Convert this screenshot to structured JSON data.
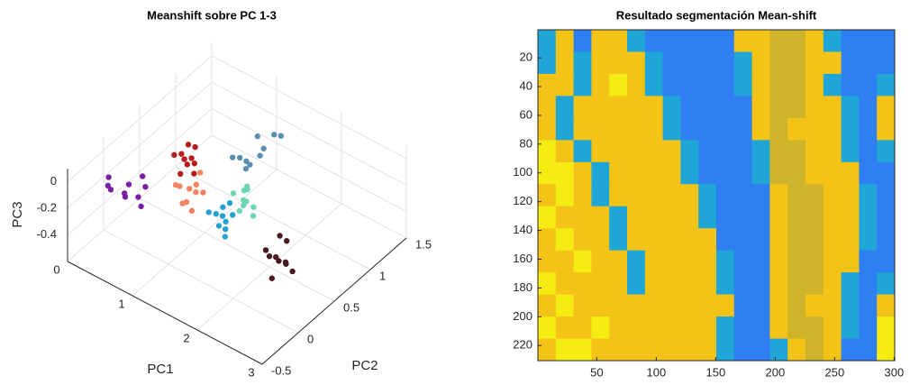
{
  "chart_data": [
    {
      "type": "scatter3d",
      "title": "Meanshift sobre PC 1-3",
      "xlabel": "PC1",
      "ylabel": "PC2",
      "zlabel": "PC3",
      "xlim": [
        0,
        3
      ],
      "ylim": [
        -0.5,
        1.5
      ],
      "zlim": [
        -0.6,
        0.1
      ],
      "xticks": [
        0,
        1,
        2,
        3
      ],
      "yticks": [
        -0.5,
        0,
        0.5,
        1,
        1.5
      ],
      "zticks": [
        -0.4,
        -0.2,
        0
      ],
      "grid": true,
      "series": [
        {
          "color": "#7b1fa2",
          "x": [
            0.4,
            0.5,
            0.6,
            0.7,
            0.5,
            0.6,
            0.8,
            0.3,
            0.7,
            0.5
          ],
          "y": [
            -0.3,
            -0.1,
            -0.25,
            -0.15,
            -0.35,
            0.0,
            -0.2,
            -0.2,
            -0.05,
            -0.15
          ],
          "z": [
            -0.02,
            -0.08,
            -0.05,
            -0.1,
            0.0,
            -0.04,
            -0.12,
            -0.03,
            -0.07,
            -0.15
          ]
        },
        {
          "color": "#b71c1c",
          "x": [
            0.7,
            0.8,
            0.9,
            0.75,
            0.85,
            0.8,
            0.95,
            0.7,
            0.9,
            0.8
          ],
          "y": [
            0.35,
            0.4,
            0.45,
            0.5,
            0.3,
            0.55,
            0.4,
            0.45,
            0.35,
            0.5
          ],
          "z": [
            -0.02,
            -0.05,
            -0.08,
            0.0,
            -0.1,
            -0.03,
            -0.12,
            -0.06,
            -0.04,
            -0.09
          ]
        },
        {
          "color": "#f4845f",
          "x": [
            1.0,
            1.1,
            1.2,
            1.05,
            1.15,
            0.95,
            1.25,
            1.1,
            1.0,
            1.2
          ],
          "y": [
            0.1,
            0.2,
            0.3,
            0.15,
            0.25,
            0.2,
            0.1,
            0.35,
            0.25,
            0.2
          ],
          "z": [
            -0.05,
            -0.1,
            -0.15,
            -0.2,
            -0.08,
            -0.12,
            -0.18,
            -0.05,
            -0.25,
            -0.1
          ]
        },
        {
          "color": "#5b8fb0",
          "x": [
            1.1,
            1.2,
            1.3,
            1.15,
            1.25,
            1.4,
            1.2,
            1.3,
            1.1,
            1.35
          ],
          "y": [
            0.8,
            0.9,
            1.0,
            1.1,
            0.85,
            1.2,
            0.95,
            1.05,
            0.9,
            1.15
          ],
          "z": [
            -0.15,
            -0.2,
            -0.18,
            -0.12,
            -0.22,
            -0.1,
            -0.25,
            -0.15,
            -0.2,
            -0.08
          ]
        },
        {
          "color": "#26a0d0",
          "x": [
            1.4,
            1.5,
            1.6,
            1.45,
            1.55,
            1.5,
            1.65,
            1.4,
            1.6,
            1.5
          ],
          "y": [
            0.2,
            0.3,
            0.25,
            0.35,
            0.3,
            0.4,
            0.2,
            0.3,
            0.35,
            0.25
          ],
          "z": [
            -0.2,
            -0.25,
            -0.3,
            -0.22,
            -0.28,
            -0.2,
            -0.32,
            -0.26,
            -0.24,
            -0.3
          ]
        },
        {
          "color": "#6fd3b8",
          "x": [
            1.5,
            1.6,
            1.7,
            1.55,
            1.65,
            1.6,
            1.75,
            1.5,
            1.7,
            1.6
          ],
          "y": [
            0.45,
            0.5,
            0.55,
            0.6,
            0.4,
            0.55,
            0.5,
            0.6,
            0.45,
            0.5
          ],
          "z": [
            -0.15,
            -0.2,
            -0.25,
            -0.18,
            -0.22,
            -0.12,
            -0.28,
            -0.2,
            -0.16,
            -0.24
          ]
        },
        {
          "color": "#4a1a22",
          "x": [
            2.0,
            2.1,
            2.2,
            2.05,
            2.15,
            2.25,
            2.1,
            2.0,
            2.2,
            2.3
          ],
          "y": [
            0.45,
            0.5,
            0.55,
            0.6,
            0.4,
            0.5,
            0.65,
            0.5,
            0.45,
            0.55
          ],
          "z": [
            -0.45,
            -0.5,
            -0.55,
            -0.4,
            -0.6,
            -0.5,
            -0.45,
            -0.52,
            -0.48,
            -0.58
          ]
        }
      ]
    },
    {
      "type": "image",
      "title": "Resultado segmentación Mean-shift",
      "xlim": [
        0.5,
        300.5
      ],
      "ylim": [
        0.5,
        230.5
      ],
      "yreverse": true,
      "xticks": [
        50,
        100,
        150,
        200,
        250,
        300
      ],
      "yticks": [
        20,
        40,
        60,
        80,
        100,
        120,
        140,
        160,
        180,
        200,
        220
      ],
      "colormap": [
        "#2f7ef2",
        "#1fa6d6",
        "#f3c318",
        "#f5ec14",
        "#cdb42b"
      ],
      "values": [
        [
          2,
          3,
          1,
          3,
          3,
          2,
          1,
          1,
          1,
          1,
          1,
          3,
          3,
          5,
          5,
          3,
          2,
          1,
          1,
          1
        ],
        [
          2,
          3,
          2,
          3,
          3,
          3,
          2,
          1,
          1,
          1,
          1,
          2,
          3,
          5,
          5,
          3,
          3,
          1,
          1,
          1
        ],
        [
          3,
          3,
          2,
          3,
          4,
          3,
          2,
          1,
          1,
          1,
          1,
          2,
          3,
          5,
          5,
          3,
          2,
          1,
          1,
          2
        ],
        [
          3,
          2,
          3,
          3,
          3,
          3,
          3,
          2,
          1,
          1,
          1,
          1,
          3,
          5,
          5,
          3,
          3,
          2,
          1,
          3
        ],
        [
          3,
          2,
          3,
          3,
          3,
          3,
          3,
          2,
          1,
          1,
          1,
          1,
          3,
          5,
          3,
          3,
          3,
          2,
          1,
          3
        ],
        [
          4,
          3,
          2,
          3,
          3,
          3,
          3,
          3,
          2,
          1,
          1,
          1,
          2,
          5,
          5,
          3,
          3,
          2,
          1,
          2
        ],
        [
          4,
          4,
          3,
          2,
          3,
          3,
          3,
          3,
          2,
          1,
          1,
          1,
          2,
          5,
          5,
          3,
          3,
          3,
          1,
          1
        ],
        [
          3,
          4,
          3,
          2,
          3,
          3,
          3,
          3,
          3,
          2,
          1,
          1,
          1,
          3,
          5,
          5,
          3,
          3,
          2,
          1
        ],
        [
          4,
          3,
          3,
          3,
          2,
          3,
          3,
          3,
          3,
          2,
          1,
          1,
          1,
          3,
          5,
          5,
          3,
          3,
          2,
          1
        ],
        [
          3,
          4,
          3,
          3,
          2,
          3,
          3,
          3,
          3,
          3,
          1,
          1,
          1,
          3,
          5,
          5,
          3,
          3,
          2,
          1
        ],
        [
          3,
          3,
          4,
          3,
          3,
          2,
          3,
          3,
          3,
          3,
          2,
          1,
          1,
          3,
          5,
          5,
          3,
          3,
          1,
          1
        ],
        [
          4,
          3,
          3,
          3,
          3,
          2,
          3,
          3,
          3,
          3,
          2,
          1,
          1,
          3,
          5,
          5,
          3,
          2,
          1,
          2
        ],
        [
          3,
          4,
          3,
          3,
          3,
          3,
          3,
          3,
          3,
          3,
          3,
          1,
          1,
          3,
          5,
          3,
          3,
          2,
          1,
          3
        ],
        [
          4,
          3,
          3,
          4,
          3,
          3,
          3,
          3,
          3,
          3,
          2,
          1,
          1,
          3,
          5,
          5,
          3,
          2,
          1,
          4
        ],
        [
          3,
          4,
          4,
          3,
          3,
          3,
          3,
          3,
          3,
          3,
          2,
          1,
          1,
          2,
          3,
          5,
          3,
          1,
          1,
          4
        ]
      ]
    }
  ]
}
